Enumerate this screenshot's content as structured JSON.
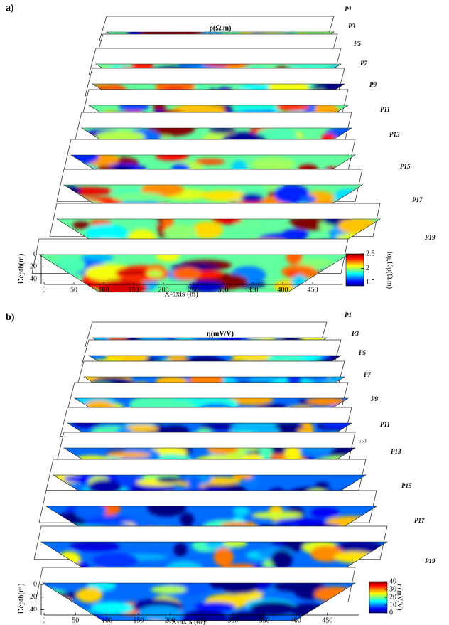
{
  "chart_data": [
    {
      "type": "section-stack",
      "panel_label": "a)",
      "title": "ρ(Ω.m)",
      "profiles": [
        "P1",
        "P3",
        "P5",
        "P7",
        "P9",
        "P11",
        "P13",
        "P15",
        "P17",
        "P19"
      ],
      "xlabel": "X-axis (m)",
      "ylabel": "Depth(m)",
      "colorbar_label": "log10ρ(Ω.m)",
      "xlim": [
        0,
        500
      ],
      "xticks": [
        0,
        50,
        100,
        150,
        200,
        250,
        300,
        350,
        400,
        450
      ],
      "ylim": [
        0,
        45
      ],
      "yticks": [
        0,
        20,
        40
      ],
      "clim": [
        1.4,
        2.5
      ],
      "cticks": [
        1.5,
        2,
        2.5
      ]
    },
    {
      "type": "section-stack",
      "panel_label": "b)",
      "title": "η(mV/V)",
      "profiles": [
        "P1",
        "P3",
        "P5",
        "P7",
        "P9",
        "P11",
        "P13",
        "P15",
        "P17",
        "P19"
      ],
      "xlabel": "X-axis (m)",
      "ylabel": "Depth(m)",
      "colorbar_label": "η(mV/V)",
      "xlim": [
        0,
        500
      ],
      "xticks": [
        0,
        50,
        100,
        150,
        200,
        250,
        300,
        350,
        400,
        450
      ],
      "ylim": [
        0,
        45
      ],
      "yticks": [
        0,
        20,
        40
      ],
      "clim": [
        0,
        40
      ],
      "cticks": [
        0,
        10,
        20,
        30,
        40
      ],
      "annotation": "550"
    }
  ]
}
